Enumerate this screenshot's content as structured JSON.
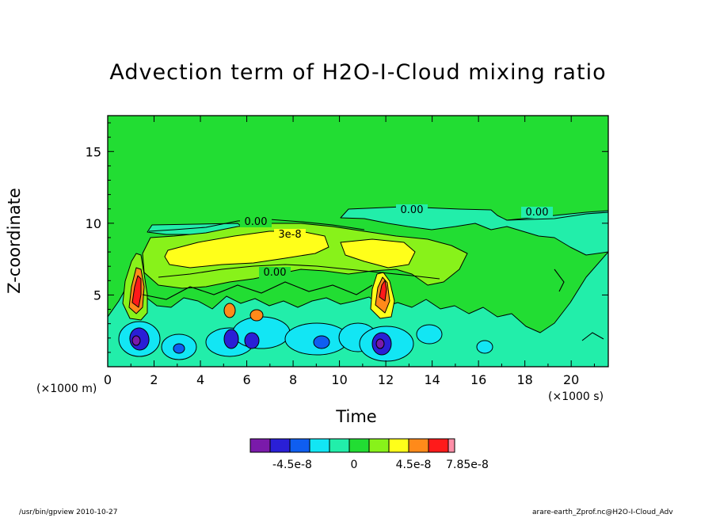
{
  "chart_data": {
    "type": "heatmap",
    "title": "Advection term of H2O-I-Cloud mixing ratio",
    "xlabel": "Time",
    "ylabel": "Z-coordinate",
    "x_unit": "(×1000 s)",
    "y_unit": "(×1000 m)",
    "xlim": [
      0,
      21.6
    ],
    "ylim": [
      0,
      17.5
    ],
    "x_ticks": [
      0,
      2,
      4,
      6,
      8,
      10,
      12,
      14,
      16,
      18,
      20
    ],
    "y_ticks": [
      5,
      10,
      15
    ],
    "colorbar": {
      "colors": [
        "#7a1aaa",
        "#2a1fd6",
        "#0f5ef0",
        "#12e6f4",
        "#22eeaa",
        "#22dd33",
        "#88f21a",
        "#ffff1a",
        "#ff8a1a",
        "#ff1a1a",
        "#ff8fa8"
      ],
      "tick_labels": [
        "-4.5e-8",
        "0",
        "4.5e-8",
        "7.85e-8"
      ]
    },
    "contour_labels": [
      "0.00",
      "3e-8",
      "0.00",
      "0.00",
      "0.00"
    ],
    "features": [
      {
        "desc": "positive core",
        "x": 1.3,
        "y": 5.5,
        "level": "red"
      },
      {
        "desc": "positive core",
        "x": 11.9,
        "y": 5.2,
        "level": "red"
      },
      {
        "desc": "positive band",
        "x": 6.5,
        "y": 7.9,
        "level": "yellow"
      },
      {
        "desc": "negative core",
        "x": 1.3,
        "y": 2.0,
        "level": "blue"
      },
      {
        "desc": "negative core",
        "x": 5.3,
        "y": 2.0,
        "level": "blue"
      },
      {
        "desc": "negative core",
        "x": 6.1,
        "y": 1.9,
        "level": "blue"
      },
      {
        "desc": "negative core",
        "x": 11.7,
        "y": 1.6,
        "level": "blue"
      }
    ]
  },
  "footer": {
    "left": "/usr/bin/gpview   2010-10-27",
    "right": "arare-earth_Zprof.nc@H2O-I-Cloud_Adv"
  }
}
